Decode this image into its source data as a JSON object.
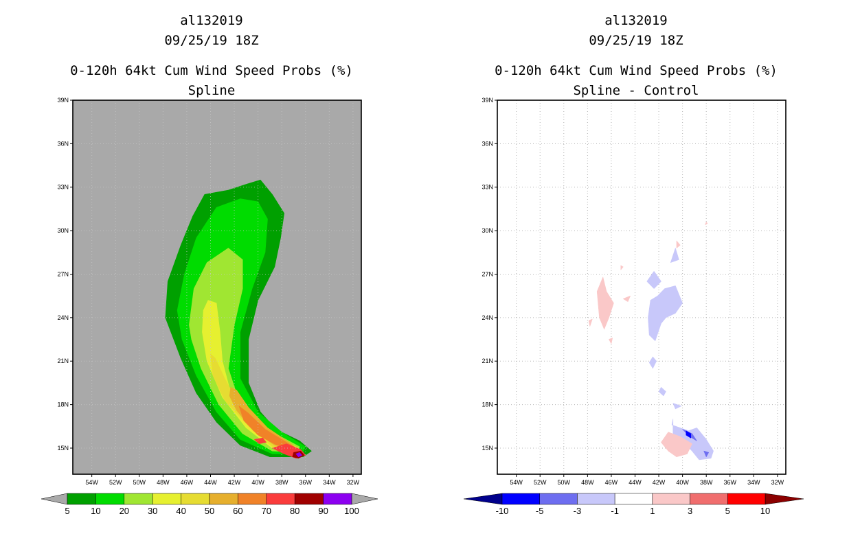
{
  "chart_data": [
    {
      "type": "contour-map",
      "title_lines": [
        "al132019",
        "09/25/19 18Z",
        "0-120h 64kt Cum Wind Speed Probs (%)",
        "Spline"
      ],
      "xlim": [
        -55.6,
        -31.3
      ],
      "ylim": [
        13.2,
        39.0
      ],
      "x_ticks": [
        "54W",
        "52W",
        "50W",
        "48W",
        "46W",
        "44W",
        "42W",
        "40W",
        "38W",
        "36W",
        "34W",
        "32W"
      ],
      "y_ticks": [
        "15N",
        "18N",
        "21N",
        "24N",
        "27N",
        "30N",
        "33N",
        "36N",
        "39N"
      ],
      "background_color": "#a9a9a9",
      "colorbar": {
        "labels": [
          "5",
          "10",
          "20",
          "30",
          "40",
          "50",
          "60",
          "70",
          "80",
          "90",
          "100"
        ],
        "colors": [
          "#00a000",
          "#00dc00",
          "#a0e632",
          "#e6f030",
          "#e6dc32",
          "#e6af2d",
          "#f08228",
          "#fa3c3c",
          "#a00000",
          "#8c00f0"
        ],
        "extend_colors": [
          "#a9a9a9",
          "#a9a9a9"
        ]
      },
      "contours": [
        {
          "level": 5,
          "color": "#00a000",
          "outline": [
            [
              -47.8,
              24.0
            ],
            [
              -47.6,
              26.5
            ],
            [
              -46.5,
              29.0
            ],
            [
              -45.5,
              31.0
            ],
            [
              -44.5,
              32.5
            ],
            [
              -42.5,
              32.8
            ],
            [
              -41.0,
              33.2
            ],
            [
              -39.8,
              33.5
            ],
            [
              -38.8,
              32.5
            ],
            [
              -37.8,
              31.2
            ],
            [
              -38.1,
              29.5
            ],
            [
              -38.6,
              27.5
            ],
            [
              -40.0,
              25.2
            ],
            [
              -40.8,
              22.5
            ],
            [
              -40.8,
              19.5
            ],
            [
              -39.8,
              17.5
            ],
            [
              -38.5,
              16.3
            ],
            [
              -36.5,
              15.5
            ],
            [
              -35.5,
              14.8
            ],
            [
              -36.2,
              14.4
            ],
            [
              -39.0,
              14.4
            ],
            [
              -41.5,
              15.2
            ],
            [
              -43.5,
              16.8
            ],
            [
              -45.2,
              18.8
            ],
            [
              -46.5,
              21.2
            ]
          ]
        },
        {
          "level": 10,
          "color": "#00dc00",
          "outline": [
            [
              -46.8,
              24.5
            ],
            [
              -46.2,
              27.0
            ],
            [
              -45.2,
              29.5
            ],
            [
              -43.5,
              31.6
            ],
            [
              -41.5,
              32.2
            ],
            [
              -40.0,
              32.0
            ],
            [
              -39.2,
              30.8
            ],
            [
              -39.4,
              28.5
            ],
            [
              -40.5,
              26.0
            ],
            [
              -41.5,
              23.0
            ],
            [
              -41.5,
              19.8
            ],
            [
              -40.0,
              17.5
            ],
            [
              -38.0,
              16.1
            ],
            [
              -36.0,
              15.1
            ],
            [
              -36.3,
              14.6
            ],
            [
              -38.8,
              14.6
            ],
            [
              -41.5,
              15.6
            ],
            [
              -43.5,
              17.5
            ],
            [
              -45.2,
              20.0
            ],
            [
              -46.4,
              22.5
            ]
          ]
        },
        {
          "level": 20,
          "color": "#a0e632",
          "outline": [
            [
              -45.8,
              23.5
            ],
            [
              -45.4,
              26.0
            ],
            [
              -44.3,
              27.8
            ],
            [
              -42.5,
              28.8
            ],
            [
              -41.3,
              28.0
            ],
            [
              -41.3,
              26.0
            ],
            [
              -42.0,
              23.5
            ],
            [
              -42.5,
              20.5
            ],
            [
              -41.5,
              18.0
            ],
            [
              -39.0,
              16.2
            ],
            [
              -36.5,
              15.1
            ],
            [
              -36.6,
              14.7
            ],
            [
              -38.8,
              14.8
            ],
            [
              -41.3,
              16.0
            ],
            [
              -43.3,
              18.0
            ],
            [
              -44.8,
              20.5
            ],
            [
              -45.6,
              22.5
            ]
          ]
        },
        {
          "level": 30,
          "color": "#e6f030",
          "outline": [
            [
              -44.6,
              24.5
            ],
            [
              -44.2,
              25.2
            ],
            [
              -43.5,
              25.0
            ],
            [
              -43.2,
              23.0
            ],
            [
              -43.0,
              21.0
            ],
            [
              -42.3,
              18.8
            ],
            [
              -40.5,
              17.0
            ],
            [
              -38.0,
              15.6
            ],
            [
              -36.6,
              15.0
            ],
            [
              -36.8,
              14.8
            ],
            [
              -38.8,
              15.0
            ],
            [
              -41.0,
              16.4
            ],
            [
              -43.0,
              18.5
            ],
            [
              -44.3,
              21.0
            ],
            [
              -44.7,
              23.0
            ]
          ]
        },
        {
          "level": 40,
          "color": "#e6dc32",
          "outline": [
            [
              -44.0,
              21.5
            ],
            [
              -43.6,
              21.2
            ],
            [
              -42.8,
              19.8
            ],
            [
              -41.6,
              18.0
            ],
            [
              -39.8,
              16.6
            ],
            [
              -37.5,
              15.4
            ],
            [
              -36.8,
              14.9
            ],
            [
              -38.8,
              15.1
            ],
            [
              -40.8,
              16.5
            ],
            [
              -42.8,
              18.3
            ],
            [
              -43.8,
              20.0
            ]
          ]
        },
        {
          "level": 50,
          "color": "#e6af2d",
          "outline": [
            [
              -42.3,
              19.2
            ],
            [
              -41.8,
              19.0
            ],
            [
              -40.8,
              17.8
            ],
            [
              -39.2,
              16.4
            ],
            [
              -37.2,
              15.3
            ],
            [
              -36.8,
              15.0
            ],
            [
              -38.6,
              15.2
            ],
            [
              -40.4,
              16.2
            ],
            [
              -41.8,
              17.6
            ],
            [
              -42.4,
              18.6
            ]
          ]
        },
        {
          "level": 60,
          "color": "#f08228",
          "outline": [
            [
              -41.6,
              17.9
            ],
            [
              -40.8,
              17.4
            ],
            [
              -39.4,
              16.3
            ],
            [
              -37.6,
              15.4
            ],
            [
              -36.8,
              15.0
            ],
            [
              -38.4,
              15.2
            ],
            [
              -40.0,
              15.9
            ],
            [
              -41.2,
              16.9
            ]
          ]
        },
        {
          "level": 70,
          "color": "#fa3c3c",
          "outline": [
            [
              -40.3,
              15.6
            ],
            [
              -39.6,
              15.7
            ],
            [
              -39.3,
              15.4
            ],
            [
              -39.9,
              15.3
            ]
          ]
        },
        {
          "level": 70,
          "color": "#fa3c3c",
          "outline": [
            [
              -38.8,
              15.0
            ],
            [
              -37.6,
              15.3
            ],
            [
              -36.4,
              14.9
            ],
            [
              -36.0,
              14.5
            ],
            [
              -36.8,
              14.3
            ],
            [
              -37.8,
              14.6
            ]
          ]
        },
        {
          "level": 90,
          "color": "#a00000",
          "outline": [
            [
              -37.0,
              14.7
            ],
            [
              -36.4,
              14.8
            ],
            [
              -36.1,
              14.5
            ],
            [
              -36.6,
              14.3
            ],
            [
              -37.1,
              14.4
            ]
          ]
        },
        {
          "level": 100,
          "color": "#8c00f0",
          "outline": [
            [
              -36.8,
              14.6
            ],
            [
              -36.5,
              14.7
            ],
            [
              -36.3,
              14.5
            ],
            [
              -36.6,
              14.4
            ]
          ]
        }
      ]
    },
    {
      "type": "contour-map",
      "title_lines": [
        "al132019",
        "09/25/19 18Z",
        "0-120h 64kt Cum Wind Speed Probs (%)",
        "Spline - Control"
      ],
      "xlim": [
        -55.6,
        -31.3
      ],
      "ylim": [
        13.2,
        39.0
      ],
      "x_ticks": [
        "54W",
        "52W",
        "50W",
        "48W",
        "46W",
        "44W",
        "42W",
        "40W",
        "38W",
        "36W",
        "34W",
        "32W"
      ],
      "y_ticks": [
        "15N",
        "18N",
        "21N",
        "24N",
        "27N",
        "30N",
        "33N",
        "36N",
        "39N"
      ],
      "background_color": "#ffffff",
      "colorbar": {
        "labels": [
          "-10",
          "-5",
          "-3",
          "-1",
          "1",
          "3",
          "5",
          "10"
        ],
        "colors": [
          "#0000ff",
          "#6e6ef0",
          "#c8c8fa",
          "#ffffff",
          "#fac8c8",
          "#f06e6e",
          "#ff0000"
        ],
        "extend_colors": [
          "#00008c",
          "#8c0000"
        ]
      },
      "contours": [
        {
          "level": -3,
          "color": "#c8c8fa",
          "outline": [
            [
              -42.7,
              25.2
            ],
            [
              -42.1,
              25.5
            ],
            [
              -41.5,
              26.0
            ],
            [
              -40.6,
              26.2
            ],
            [
              -40.0,
              25.0
            ],
            [
              -40.6,
              24.3
            ],
            [
              -41.4,
              24.0
            ],
            [
              -41.8,
              23.6
            ],
            [
              -42.3,
              22.4
            ],
            [
              -42.8,
              22.8
            ],
            [
              -42.9,
              24.0
            ]
          ]
        },
        {
          "level": -3,
          "color": "#c8c8fa",
          "outline": [
            [
              -43.0,
              26.5
            ],
            [
              -42.4,
              27.2
            ],
            [
              -41.8,
              26.5
            ],
            [
              -42.4,
              26.0
            ]
          ]
        },
        {
          "level": -3,
          "color": "#c8c8fa",
          "outline": [
            [
              -41.0,
              27.8
            ],
            [
              -40.6,
              28.8
            ],
            [
              -40.3,
              28.0
            ]
          ]
        },
        {
          "level": -3,
          "color": "#c8c8fa",
          "outline": [
            [
              -42.5,
              21.3
            ],
            [
              -42.2,
              21.0
            ],
            [
              -42.5,
              20.5
            ],
            [
              -42.8,
              20.9
            ]
          ]
        },
        {
          "level": -3,
          "color": "#c8c8fa",
          "outline": [
            [
              -41.8,
              19.2
            ],
            [
              -41.4,
              18.9
            ],
            [
              -41.6,
              18.6
            ],
            [
              -42.0,
              18.9
            ]
          ]
        },
        {
          "level": -3,
          "color": "#c8c8fa",
          "outline": [
            [
              -40.8,
              18.1
            ],
            [
              -40.1,
              17.9
            ],
            [
              -40.6,
              17.7
            ]
          ]
        },
        {
          "level": -3,
          "color": "#c8c8fa",
          "outline": [
            [
              -40.8,
              17.0
            ],
            [
              -40.9,
              16.6
            ],
            [
              -39.5,
              16.2
            ],
            [
              -38.8,
              16.4
            ],
            [
              -38.0,
              15.6
            ],
            [
              -37.4,
              14.8
            ],
            [
              -37.6,
              14.3
            ],
            [
              -38.6,
              14.2
            ],
            [
              -39.2,
              14.8
            ],
            [
              -40.0,
              15.5
            ],
            [
              -40.8,
              16.0
            ]
          ]
        },
        {
          "level": -5,
          "color": "#6e6ef0",
          "outline": [
            [
              -40.0,
              16.3
            ],
            [
              -39.2,
              16.0
            ],
            [
              -38.8,
              15.5
            ],
            [
              -39.4,
              15.8
            ]
          ]
        },
        {
          "level": -5,
          "color": "#6e6ef0",
          "outline": [
            [
              -38.2,
              14.8
            ],
            [
              -37.8,
              14.7
            ],
            [
              -38.0,
              14.4
            ]
          ]
        },
        {
          "level": -10,
          "color": "#0000ff",
          "outline": [
            [
              -39.7,
              16.2
            ],
            [
              -39.3,
              16.0
            ],
            [
              -39.3,
              15.7
            ],
            [
              -39.7,
              15.9
            ]
          ]
        },
        {
          "level": 3,
          "color": "#fac8c8",
          "outline": [
            [
              -47.2,
              25.8
            ],
            [
              -46.7,
              26.8
            ],
            [
              -46.4,
              25.8
            ],
            [
              -45.8,
              25.0
            ],
            [
              -46.2,
              24.0
            ],
            [
              -46.6,
              23.2
            ],
            [
              -47.0,
              24.0
            ]
          ]
        },
        {
          "level": 3,
          "color": "#fac8c8",
          "outline": [
            [
              -45.0,
              25.3
            ],
            [
              -44.4,
              25.5
            ],
            [
              -44.6,
              25.1
            ]
          ]
        },
        {
          "level": 3,
          "color": "#fac8c8",
          "outline": [
            [
              -47.9,
              23.8
            ],
            [
              -47.6,
              23.9
            ],
            [
              -47.8,
              23.4
            ]
          ]
        },
        {
          "level": 3,
          "color": "#fac8c8",
          "outline": [
            [
              -46.2,
              22.5
            ],
            [
              -45.9,
              22.6
            ],
            [
              -46.0,
              22.2
            ]
          ]
        },
        {
          "level": 3,
          "color": "#fac8c8",
          "outline": [
            [
              -40.5,
              29.3
            ],
            [
              -40.2,
              29.0
            ],
            [
              -40.5,
              28.8
            ]
          ]
        },
        {
          "level": 3,
          "color": "#fac8c8",
          "outline": [
            [
              -38.0,
              30.6
            ],
            [
              -37.9,
              30.5
            ],
            [
              -38.1,
              30.4
            ]
          ]
        },
        {
          "level": 3,
          "color": "#fac8c8",
          "outline": [
            [
              -45.2,
              27.6
            ],
            [
              -45.0,
              27.5
            ],
            [
              -45.2,
              27.3
            ]
          ]
        },
        {
          "level": 3,
          "color": "#fac8c8",
          "outline": [
            [
              -41.8,
              15.4
            ],
            [
              -41.2,
              16.1
            ],
            [
              -40.2,
              15.8
            ],
            [
              -39.2,
              15.3
            ],
            [
              -39.6,
              14.6
            ],
            [
              -40.5,
              14.4
            ],
            [
              -41.2,
              14.8
            ]
          ]
        }
      ]
    }
  ]
}
